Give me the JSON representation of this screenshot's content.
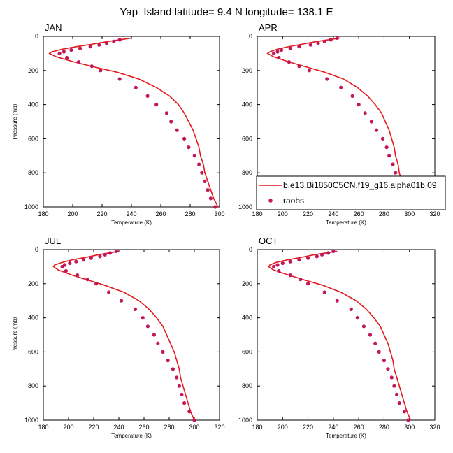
{
  "title": "Yap_Island  latitude= 9.4 N longitude= 138.1 E",
  "colors": {
    "model": "#e41a1c",
    "obs": "#c2185b"
  },
  "chart_data": [
    {
      "type": "line",
      "panel": "JAN",
      "xlabel": "Temperature (K)",
      "ylabel": "Pressure (mb)",
      "xlim": [
        180,
        300
      ],
      "ylim": [
        0,
        1000
      ],
      "y_reversed": true,
      "xticks": [
        180,
        200,
        220,
        240,
        260,
        280,
        300
      ],
      "yticks": [
        0,
        200,
        400,
        600,
        800,
        1000
      ],
      "series": [
        {
          "name": "b.e13.Bi1850C5CN.f19_g16.alpha01b.09",
          "kind": "line",
          "points": [
            [
              240,
              10
            ],
            [
              232,
              20
            ],
            [
              224,
              30
            ],
            [
              214,
              45
            ],
            [
              203,
              60
            ],
            [
              193,
              75
            ],
            [
              186,
              90
            ],
            [
              184,
              100
            ],
            [
              189,
              120
            ],
            [
              201,
              150
            ],
            [
              215,
              180
            ],
            [
              230,
              210
            ],
            [
              245,
              250
            ],
            [
              257,
              300
            ],
            [
              266,
              350
            ],
            [
              272,
              400
            ],
            [
              276,
              450
            ],
            [
              279,
              500
            ],
            [
              282,
              550
            ],
            [
              284,
              600
            ],
            [
              286,
              650
            ],
            [
              287,
              700
            ],
            [
              289,
              750
            ],
            [
              290,
              800
            ],
            [
              292,
              850
            ],
            [
              294,
              900
            ],
            [
              296,
              950
            ],
            [
              299,
              1000
            ]
          ]
        },
        {
          "name": "raobs",
          "kind": "markers",
          "points": [
            [
              232,
              20
            ],
            [
              228,
              30
            ],
            [
              223,
              40
            ],
            [
              218,
              50
            ],
            [
              212,
              60
            ],
            [
              205,
              70
            ],
            [
              199,
              80
            ],
            [
              194,
              90
            ],
            [
              191,
              100
            ],
            [
              196,
              125
            ],
            [
              204,
              150
            ],
            [
              213,
              175
            ],
            [
              219,
              200
            ],
            [
              232,
              250
            ],
            [
              243,
              300
            ],
            [
              251,
              350
            ],
            [
              257,
              400
            ],
            [
              264,
              450
            ],
            [
              267,
              500
            ],
            [
              271,
              550
            ],
            [
              276,
              600
            ],
            [
              279,
              650
            ],
            [
              283,
              700
            ],
            [
              286,
              750
            ],
            [
              288,
              800
            ],
            [
              290,
              850
            ],
            [
              292,
              900
            ],
            [
              294,
              950
            ],
            [
              297,
              1000
            ]
          ]
        }
      ]
    },
    {
      "type": "line",
      "panel": "APR",
      "xlabel": "Temperature (K)",
      "ylabel": "",
      "xlim": [
        180,
        320
      ],
      "ylim": [
        0,
        1000
      ],
      "y_reversed": true,
      "xticks": [
        180,
        200,
        220,
        240,
        260,
        280,
        300,
        320
      ],
      "yticks": [
        0,
        200,
        400,
        600,
        800,
        1000
      ],
      "series": [
        {
          "name": "b.e13.Bi1850C5CN.f19_g16.alpha01b.09",
          "kind": "line",
          "points": [
            [
              245,
              10
            ],
            [
              236,
              20
            ],
            [
              227,
              30
            ],
            [
              216,
              45
            ],
            [
              205,
              60
            ],
            [
              196,
              75
            ],
            [
              190,
              90
            ],
            [
              188,
              100
            ],
            [
              193,
              120
            ],
            [
              205,
              150
            ],
            [
              219,
              180
            ],
            [
              233,
              210
            ],
            [
              248,
              250
            ],
            [
              259,
              300
            ],
            [
              267,
              350
            ],
            [
              273,
              400
            ],
            [
              278,
              450
            ],
            [
              281,
              500
            ],
            [
              284,
              550
            ],
            [
              286,
              600
            ],
            [
              288,
              650
            ],
            [
              289,
              700
            ],
            [
              291,
              750
            ],
            [
              292,
              800
            ],
            [
              294,
              850
            ],
            [
              296,
              900
            ],
            [
              298,
              950
            ],
            [
              301,
              1000
            ]
          ]
        },
        {
          "name": "raobs",
          "kind": "markers",
          "points": [
            [
              243,
              10
            ],
            [
              238,
              20
            ],
            [
              233,
              30
            ],
            [
              228,
              40
            ],
            [
              222,
              50
            ],
            [
              213,
              60
            ],
            [
              206,
              70
            ],
            [
              199,
              80
            ],
            [
              196,
              90
            ],
            [
              193,
              100
            ],
            [
              197,
              125
            ],
            [
              205,
              150
            ],
            [
              213,
              175
            ],
            [
              221,
              200
            ],
            [
              235,
              250
            ],
            [
              246,
              300
            ],
            [
              255,
              350
            ],
            [
              260,
              400
            ],
            [
              265,
              450
            ],
            [
              270,
              500
            ],
            [
              274,
              550
            ],
            [
              279,
              600
            ],
            [
              282,
              650
            ],
            [
              284,
              700
            ],
            [
              287,
              750
            ],
            [
              289,
              800
            ],
            [
              291,
              850
            ],
            [
              293,
              900
            ],
            [
              297,
              950
            ],
            [
              300,
              1000
            ]
          ]
        }
      ]
    },
    {
      "type": "line",
      "panel": "JUL",
      "xlabel": "Temperature (K)",
      "ylabel": "Pressure (mb)",
      "xlim": [
        180,
        320
      ],
      "ylim": [
        0,
        1000
      ],
      "y_reversed": true,
      "xticks": [
        180,
        200,
        220,
        240,
        260,
        280,
        300,
        320
      ],
      "yticks": [
        0,
        200,
        400,
        600,
        800,
        1000
      ],
      "series": [
        {
          "name": "b.e13.Bi1850C5CN.f19_g16.alpha01b.09",
          "kind": "line",
          "points": [
            [
              240,
              10
            ],
            [
              232,
              20
            ],
            [
              224,
              30
            ],
            [
              214,
              45
            ],
            [
              203,
              60
            ],
            [
              195,
              75
            ],
            [
              189,
              90
            ],
            [
              188,
              100
            ],
            [
              192,
              120
            ],
            [
              203,
              150
            ],
            [
              216,
              180
            ],
            [
              229,
              210
            ],
            [
              244,
              250
            ],
            [
              256,
              300
            ],
            [
              264,
              350
            ],
            [
              270,
              400
            ],
            [
              275,
              450
            ],
            [
              278,
              500
            ],
            [
              281,
              550
            ],
            [
              284,
              600
            ],
            [
              286,
              650
            ],
            [
              288,
              700
            ],
            [
              289,
              750
            ],
            [
              291,
              800
            ],
            [
              293,
              850
            ],
            [
              295,
              900
            ],
            [
              297,
              950
            ],
            [
              300,
              1000
            ]
          ]
        },
        {
          "name": "raobs",
          "kind": "markers",
          "points": [
            [
              238,
              10
            ],
            [
              233,
              20
            ],
            [
              229,
              30
            ],
            [
              225,
              40
            ],
            [
              218,
              50
            ],
            [
              212,
              60
            ],
            [
              206,
              70
            ],
            [
              201,
              80
            ],
            [
              197,
              90
            ],
            [
              195,
              100
            ],
            [
              198,
              125
            ],
            [
              207,
              150
            ],
            [
              215,
              175
            ],
            [
              222,
              200
            ],
            [
              232,
              250
            ],
            [
              242,
              300
            ],
            [
              253,
              350
            ],
            [
              259,
              400
            ],
            [
              263,
              450
            ],
            [
              268,
              500
            ],
            [
              271,
              550
            ],
            [
              275,
              600
            ],
            [
              279,
              650
            ],
            [
              283,
              700
            ],
            [
              286,
              750
            ],
            [
              288,
              800
            ],
            [
              290,
              850
            ],
            [
              292,
              900
            ],
            [
              296,
              950
            ],
            [
              300,
              1000
            ]
          ]
        }
      ]
    },
    {
      "type": "line",
      "panel": "OCT",
      "xlabel": "Temperature (K)",
      "ylabel": "",
      "xlim": [
        180,
        320
      ],
      "ylim": [
        0,
        1000
      ],
      "y_reversed": true,
      "xticks": [
        180,
        200,
        220,
        240,
        260,
        280,
        300,
        320
      ],
      "yticks": [
        0,
        200,
        400,
        600,
        800,
        1000
      ],
      "series": [
        {
          "name": "b.e13.Bi1850C5CN.f19_g16.alpha01b.09",
          "kind": "line",
          "points": [
            [
              243,
              10
            ],
            [
              234,
              20
            ],
            [
              225,
              30
            ],
            [
              215,
              45
            ],
            [
              204,
              60
            ],
            [
              195,
              75
            ],
            [
              190,
              90
            ],
            [
              189,
              100
            ],
            [
              193,
              120
            ],
            [
              205,
              150
            ],
            [
              218,
              180
            ],
            [
              232,
              210
            ],
            [
              246,
              250
            ],
            [
              258,
              300
            ],
            [
              266,
              350
            ],
            [
              272,
              400
            ],
            [
              277,
              450
            ],
            [
              280,
              500
            ],
            [
              283,
              550
            ],
            [
              285,
              600
            ],
            [
              287,
              650
            ],
            [
              288,
              700
            ],
            [
              290,
              750
            ],
            [
              292,
              800
            ],
            [
              294,
              850
            ],
            [
              296,
              900
            ],
            [
              298,
              950
            ],
            [
              301,
              1000
            ]
          ]
        },
        {
          "name": "raobs",
          "kind": "markers",
          "points": [
            [
              240,
              10
            ],
            [
              236,
              20
            ],
            [
              231,
              30
            ],
            [
              227,
              40
            ],
            [
              220,
              50
            ],
            [
              213,
              60
            ],
            [
              206,
              70
            ],
            [
              200,
              80
            ],
            [
              196,
              90
            ],
            [
              193,
              100
            ],
            [
              197,
              125
            ],
            [
              206,
              150
            ],
            [
              214,
              175
            ],
            [
              220,
              200
            ],
            [
              233,
              250
            ],
            [
              243,
              300
            ],
            [
              254,
              350
            ],
            [
              259,
              400
            ],
            [
              264,
              450
            ],
            [
              269,
              500
            ],
            [
              273,
              550
            ],
            [
              276,
              600
            ],
            [
              280,
              650
            ],
            [
              283,
              700
            ],
            [
              286,
              750
            ],
            [
              288,
              800
            ],
            [
              290,
              850
            ],
            [
              292,
              900
            ],
            [
              296,
              950
            ],
            [
              299,
              1000
            ]
          ]
        }
      ]
    }
  ],
  "legend": {
    "entries": [
      {
        "label": "b.e13.Bi1850C5CN.f19_g16.alpha01b.09",
        "kind": "line"
      },
      {
        "label": "raobs",
        "kind": "markers"
      }
    ]
  }
}
